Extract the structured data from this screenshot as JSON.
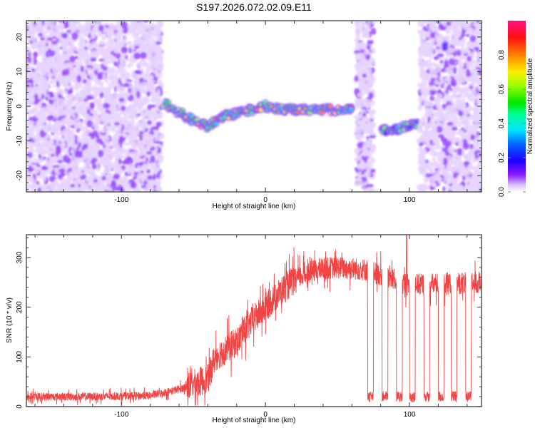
{
  "title": "S197.2026.072.02.09.E11",
  "chart_data": [
    {
      "type": "heatmap",
      "name": "spectrogram",
      "xlabel": "Height of straight line (km)",
      "ylabel": "Frequency (Hz)",
      "xlim": [
        -166,
        150
      ],
      "ylim": [
        -24.7,
        24.7
      ],
      "xticks": [
        -100,
        0,
        100
      ],
      "yticks": [
        -20,
        -10,
        0,
        10,
        20
      ],
      "colorbar": {
        "label": "Normalized spectral amplitude",
        "range": [
          0.0,
          1.0
        ],
        "ticks": [
          "0.0",
          "0.2",
          "0.4",
          "0.6",
          "0.8"
        ],
        "colormap": [
          "#ffffff",
          "#e6d4ff",
          "#c9a6ff",
          "#9a4dff",
          "#7a00ff",
          "#1a00ff",
          "#0055ff",
          "#00c8ff",
          "#00ff80",
          "#00e600",
          "#80ff00",
          "#ffe600",
          "#ff8000",
          "#ff1a00",
          "#ff0080"
        ]
      },
      "features": [
        {
          "label": "noise-band",
          "x_range": [
            -166,
            -72
          ],
          "level": 0.1
        },
        {
          "label": "signal-track",
          "points": [
            [
              -70,
              1
            ],
            [
              -60,
              -2
            ],
            [
              -50,
              -4
            ],
            [
              -40,
              -6
            ],
            [
              -30,
              -3
            ],
            [
              -20,
              -2
            ],
            [
              -10,
              -1
            ],
            [
              0,
              0
            ],
            [
              10,
              -1
            ],
            [
              20,
              -1
            ],
            [
              40,
              -1
            ],
            [
              60,
              -1
            ]
          ],
          "level": 0.85
        },
        {
          "label": "noise-band",
          "x_range": [
            63,
            75
          ],
          "level": 0.1
        },
        {
          "label": "signal-track",
          "points": [
            [
              80,
              -7
            ],
            [
              88,
              -7
            ],
            [
              95,
              -6
            ],
            [
              105,
              -5
            ]
          ],
          "level": 0.7
        },
        {
          "label": "noise-band",
          "x_range": [
            107,
            150
          ],
          "level": 0.1
        },
        {
          "label": "signal-blob",
          "points": [
            [
              125,
              17
            ]
          ],
          "level": 0.5
        },
        {
          "label": "signal-blob",
          "points": [
            [
              148,
              -14
            ]
          ],
          "level": 0.3
        }
      ]
    },
    {
      "type": "line",
      "name": "snr",
      "xlabel": "Height of straight line (km)",
      "ylabel": "SNR (10 * v/v)",
      "xlim": [
        -166,
        150
      ],
      "ylim": [
        0,
        346
      ],
      "xticks": [
        -100,
        0,
        100
      ],
      "yticks": [
        0,
        100,
        200,
        300
      ],
      "color": "#f03030",
      "envelope": [
        [
          -166,
          20
        ],
        [
          -120,
          20
        ],
        [
          -80,
          22
        ],
        [
          -60,
          35
        ],
        [
          -40,
          55
        ],
        [
          -35,
          100
        ],
        [
          -20,
          130
        ],
        [
          -10,
          170
        ],
        [
          0,
          200
        ],
        [
          10,
          230
        ],
        [
          20,
          255
        ],
        [
          30,
          270
        ],
        [
          40,
          278
        ],
        [
          50,
          280
        ],
        [
          60,
          278
        ],
        [
          70,
          275
        ],
        [
          100,
          245
        ],
        [
          150,
          250
        ]
      ],
      "dropouts": [
        {
          "from": 71,
          "to": 75,
          "value": 20
        },
        {
          "from": 81,
          "to": 85,
          "value": 20
        },
        {
          "from": 91,
          "to": 95,
          "value": 20
        },
        {
          "from": 100,
          "to": 104,
          "value": 20
        },
        {
          "from": 110,
          "to": 114,
          "value": 20
        },
        {
          "from": 120,
          "to": 124,
          "value": 20
        },
        {
          "from": 129,
          "to": 133,
          "value": 20
        },
        {
          "from": 139,
          "to": 143,
          "value": 20
        }
      ],
      "spike": {
        "x": 98,
        "value": 346
      }
    }
  ]
}
